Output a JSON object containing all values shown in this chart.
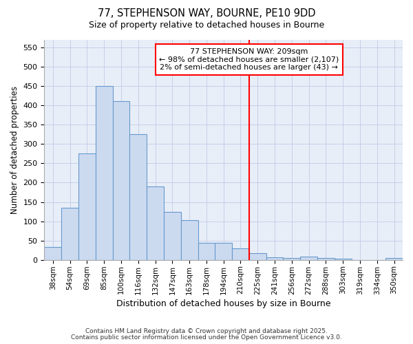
{
  "title1": "77, STEPHENSON WAY, BOURNE, PE10 9DD",
  "title2": "Size of property relative to detached houses in Bourne",
  "xlabel": "Distribution of detached houses by size in Bourne",
  "ylabel": "Number of detached properties",
  "categories": [
    "38sqm",
    "54sqm",
    "69sqm",
    "85sqm",
    "100sqm",
    "116sqm",
    "132sqm",
    "147sqm",
    "163sqm",
    "178sqm",
    "194sqm",
    "210sqm",
    "225sqm",
    "241sqm",
    "256sqm",
    "272sqm",
    "288sqm",
    "303sqm",
    "319sqm",
    "334sqm",
    "350sqm"
  ],
  "values": [
    33,
    135,
    275,
    450,
    410,
    325,
    190,
    125,
    103,
    45,
    45,
    30,
    18,
    7,
    5,
    9,
    5,
    4,
    0,
    0,
    5
  ],
  "bar_color": "#ccdaf0",
  "bar_edge_color": "#6699cc",
  "vline_x_idx": 11,
  "vline_color": "red",
  "annotation_title": "77 STEPHENSON WAY: 209sqm",
  "annotation_line1": "← 98% of detached houses are smaller (2,107)",
  "annotation_line2": "2% of semi-detached houses are larger (43) →",
  "annotation_box_color": "red",
  "ylim": [
    0,
    570
  ],
  "yticks": [
    0,
    50,
    100,
    150,
    200,
    250,
    300,
    350,
    400,
    450,
    500,
    550
  ],
  "bg_color": "#ffffff",
  "plot_bg_color": "#e8eef8",
  "grid_color": "#c5cfe8",
  "footer1": "Contains HM Land Registry data © Crown copyright and database right 2025.",
  "footer2": "Contains public sector information licensed under the Open Government Licence v3.0."
}
